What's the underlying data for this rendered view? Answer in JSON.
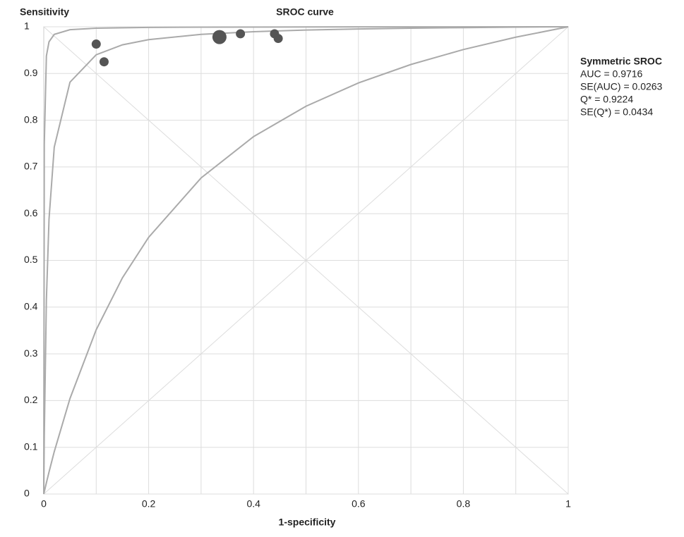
{
  "chart_data": {
    "type": "sroc",
    "title": "SROC curve",
    "ylabel": "Sensitivity",
    "xlabel": "1-specificity",
    "xlim": [
      0,
      1
    ],
    "ylim": [
      0,
      1
    ],
    "xticks": [
      0,
      0.2,
      0.4,
      0.6,
      0.8,
      1
    ],
    "xgrid": [
      0.1,
      0.2,
      0.3,
      0.4,
      0.5,
      0.6,
      0.7,
      0.8,
      0.9,
      1
    ],
    "yticks": [
      0,
      0.1,
      0.2,
      0.3,
      0.4,
      0.5,
      0.6,
      0.7,
      0.8,
      0.9,
      1
    ],
    "grid": true,
    "points": {
      "color": "#555555",
      "x": [
        0.1,
        0.115,
        0.335,
        0.375,
        0.44,
        0.447
      ],
      "y": [
        0.963,
        0.925,
        0.978,
        0.985,
        0.985,
        0.975
      ],
      "sizes": [
        42,
        42,
        100,
        42,
        42,
        42
      ]
    },
    "curves": [
      {
        "color": "#aaaaaa",
        "x": [
          0,
          0.001,
          0.005,
          0.01,
          0.02,
          0.05,
          0.1,
          0.15,
          0.2,
          0.3,
          0.4,
          0.5,
          0.6,
          0.7,
          0.8,
          0.9,
          1
        ],
        "values": [
          0,
          0.1239,
          0.4152,
          0.588,
          0.7425,
          0.8815,
          0.9401,
          0.9614,
          0.9725,
          0.9838,
          0.9895,
          0.993,
          0.9953,
          0.997,
          0.9982,
          0.9992,
          1
        ]
      },
      {
        "color": "#aaaaaa",
        "x": [
          0,
          0.001,
          0.005,
          0.01,
          0.02,
          0.05,
          0.1,
          0.15,
          0.2,
          0.3,
          0.4,
          0.5,
          0.6,
          0.7,
          0.8,
          0.9,
          1
        ],
        "values": [
          0,
          0.00486,
          0.0239,
          0.047,
          0.0906,
          0.2044,
          0.3516,
          0.4627,
          0.5495,
          0.6765,
          0.7649,
          0.83,
          0.8798,
          0.9193,
          0.9513,
          0.9777,
          1
        ]
      },
      {
        "color": "#aaaaaa",
        "x": [
          0,
          0.001,
          0.005,
          0.01,
          0.02,
          0.05,
          0.1,
          0.2,
          0.3,
          0.5,
          1
        ],
        "values": [
          0,
          0.749,
          0.9375,
          0.9679,
          0.9838,
          0.9937,
          0.997,
          0.9987,
          0.9992,
          0.9997,
          1
        ]
      }
    ],
    "annotation": {
      "title": "Symmetric SROC",
      "lines": [
        "AUC = 0.9716",
        "SE(AUC) = 0.0263",
        "Q* = 0.9224",
        "SE(Q*) = 0.0434"
      ]
    }
  }
}
